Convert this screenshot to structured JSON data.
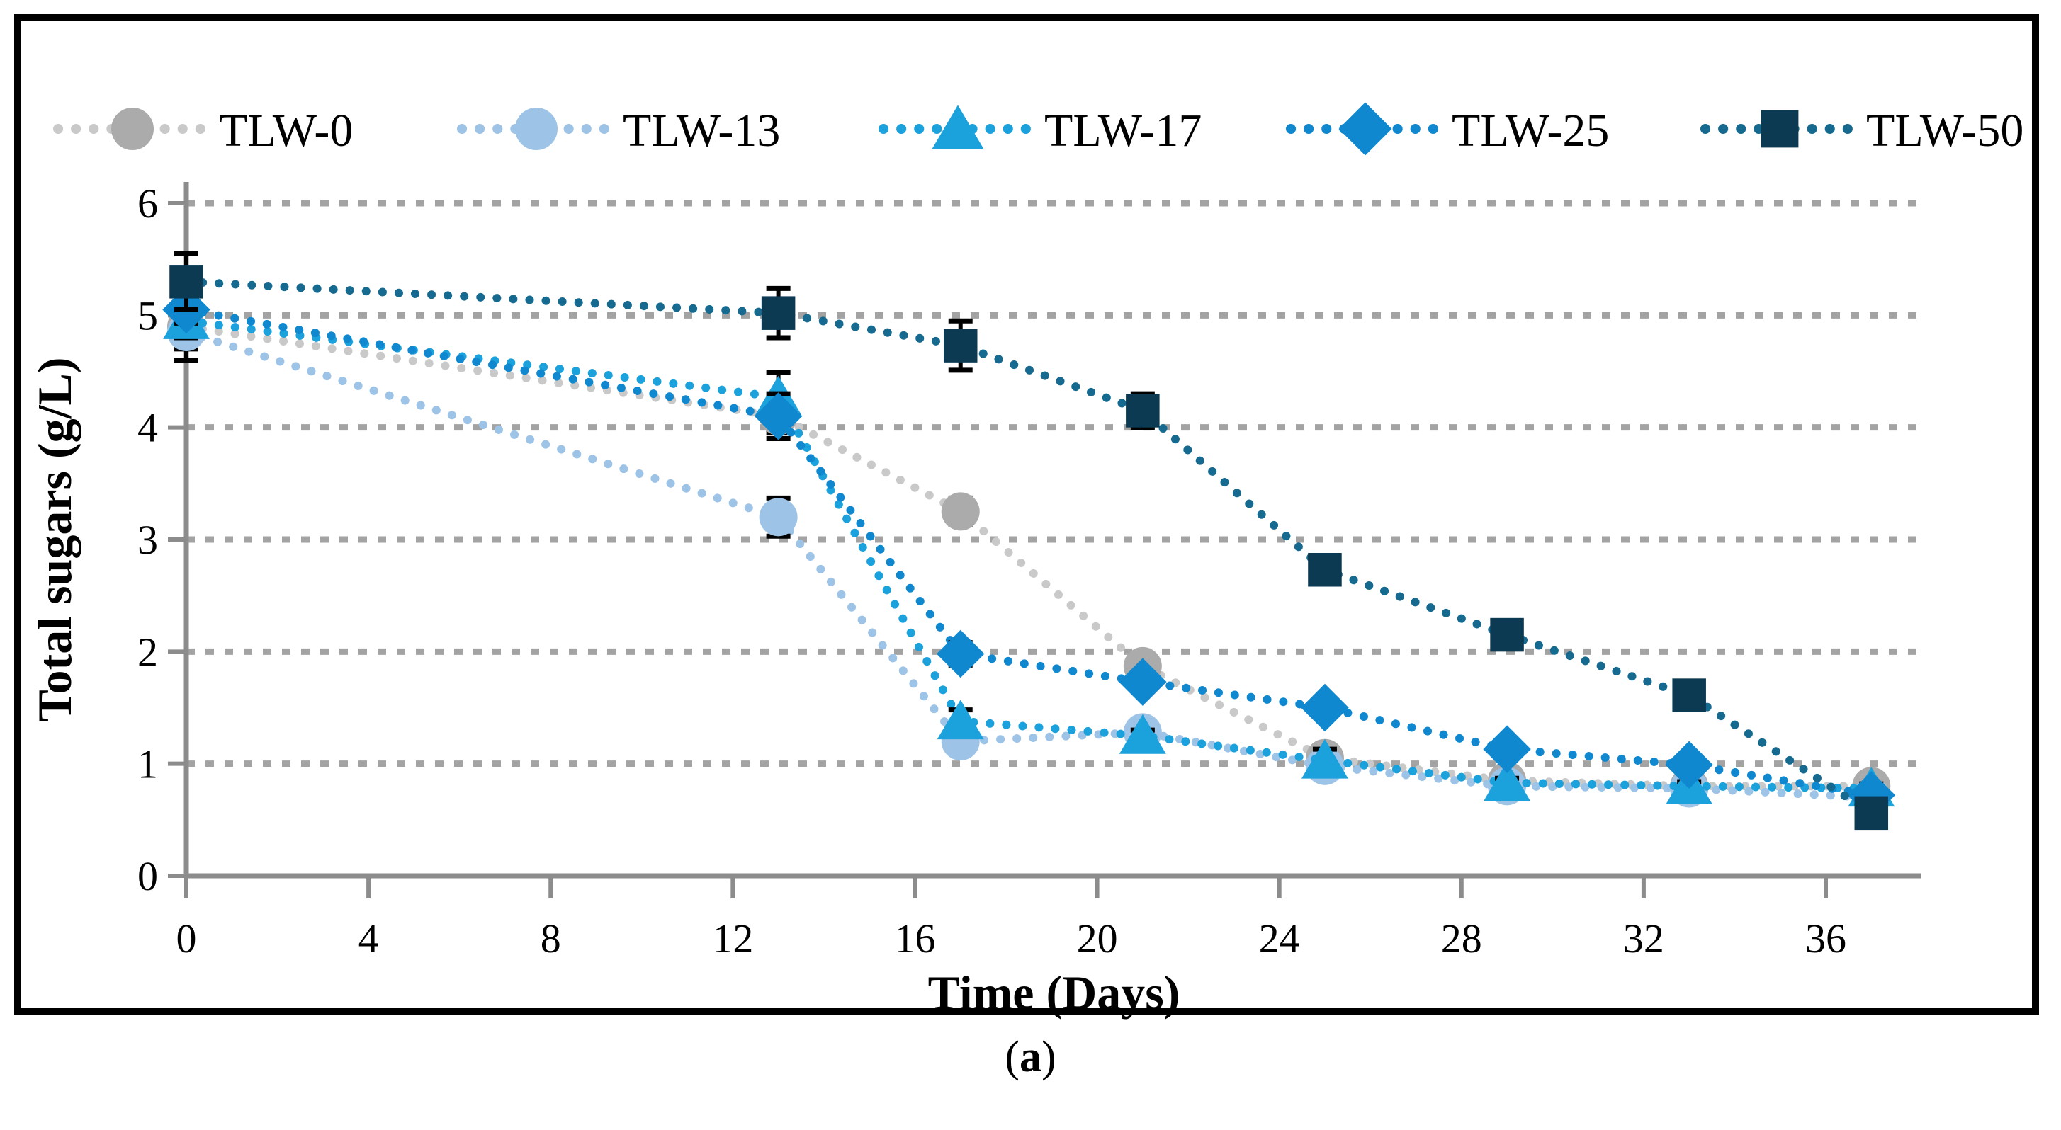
{
  "figure": {
    "caption_open": "(",
    "caption_letter": "a",
    "caption_close": ")"
  },
  "chart_data": {
    "type": "line",
    "title": "",
    "xlabel": "Time (Days)",
    "ylabel": "Total sugars (g/L)",
    "x_ticks": [
      0,
      4,
      8,
      12,
      16,
      20,
      24,
      28,
      32,
      36
    ],
    "y_ticks": [
      0,
      1,
      2,
      3,
      4,
      5,
      6
    ],
    "xlim": [
      0,
      38.1
    ],
    "ylim": [
      0,
      6
    ],
    "grid": "horizontal-dashed",
    "gridline_color": "#A3A3A3",
    "axis_color": "#8C8C8C",
    "error_bar_color": "#000000",
    "legend_position": "top",
    "x": [
      0,
      13,
      17,
      21,
      25,
      29,
      33,
      37
    ],
    "series": [
      {
        "name": "TLW-0",
        "marker": "circle",
        "color": "#ABABAB",
        "line_color": "#C9C9C9",
        "values": [
          4.9,
          4.1,
          3.25,
          1.87,
          1.05,
          0.85,
          0.8,
          0.8
        ],
        "errors": [
          0.2,
          0.15,
          0.12,
          0.08,
          0.05,
          0.04,
          0.04,
          0.04
        ]
      },
      {
        "name": "TLW-13",
        "marker": "circle",
        "color": "#9DC3E6",
        "line_color": "#9DC3E6",
        "values": [
          4.85,
          3.2,
          1.2,
          1.28,
          0.98,
          0.8,
          0.78,
          0.7
        ],
        "errors": [
          0.25,
          0.17,
          0.06,
          0.06,
          0.05,
          0.04,
          0.04,
          0.04
        ]
      },
      {
        "name": "TLW-17",
        "marker": "triangle",
        "color": "#1BA1DC",
        "line_color": "#1BA1DC",
        "values": [
          4.95,
          4.27,
          1.38,
          1.25,
          1.03,
          0.83,
          0.8,
          0.78
        ],
        "errors": [
          0.15,
          0.22,
          0.1,
          0.05,
          0.1,
          0.04,
          0.04,
          0.04
        ]
      },
      {
        "name": "TLW-25",
        "marker": "diamond",
        "color": "#1088D0",
        "line_color": "#1088D0",
        "values": [
          5.05,
          4.1,
          1.98,
          1.73,
          1.5,
          1.13,
          0.99,
          0.72
        ],
        "errors": [
          0.12,
          0.2,
          0.1,
          0.06,
          0.08,
          0.06,
          0.05,
          0.04
        ]
      },
      {
        "name": "TLW-50",
        "marker": "square",
        "color": "#0D3A53",
        "line_color": "#16698F",
        "values": [
          5.3,
          5.02,
          4.73,
          4.15,
          2.73,
          2.15,
          1.61,
          0.56
        ],
        "errors": [
          0.25,
          0.22,
          0.22,
          0.15,
          0.08,
          0.05,
          0.05,
          0.05
        ]
      }
    ]
  }
}
